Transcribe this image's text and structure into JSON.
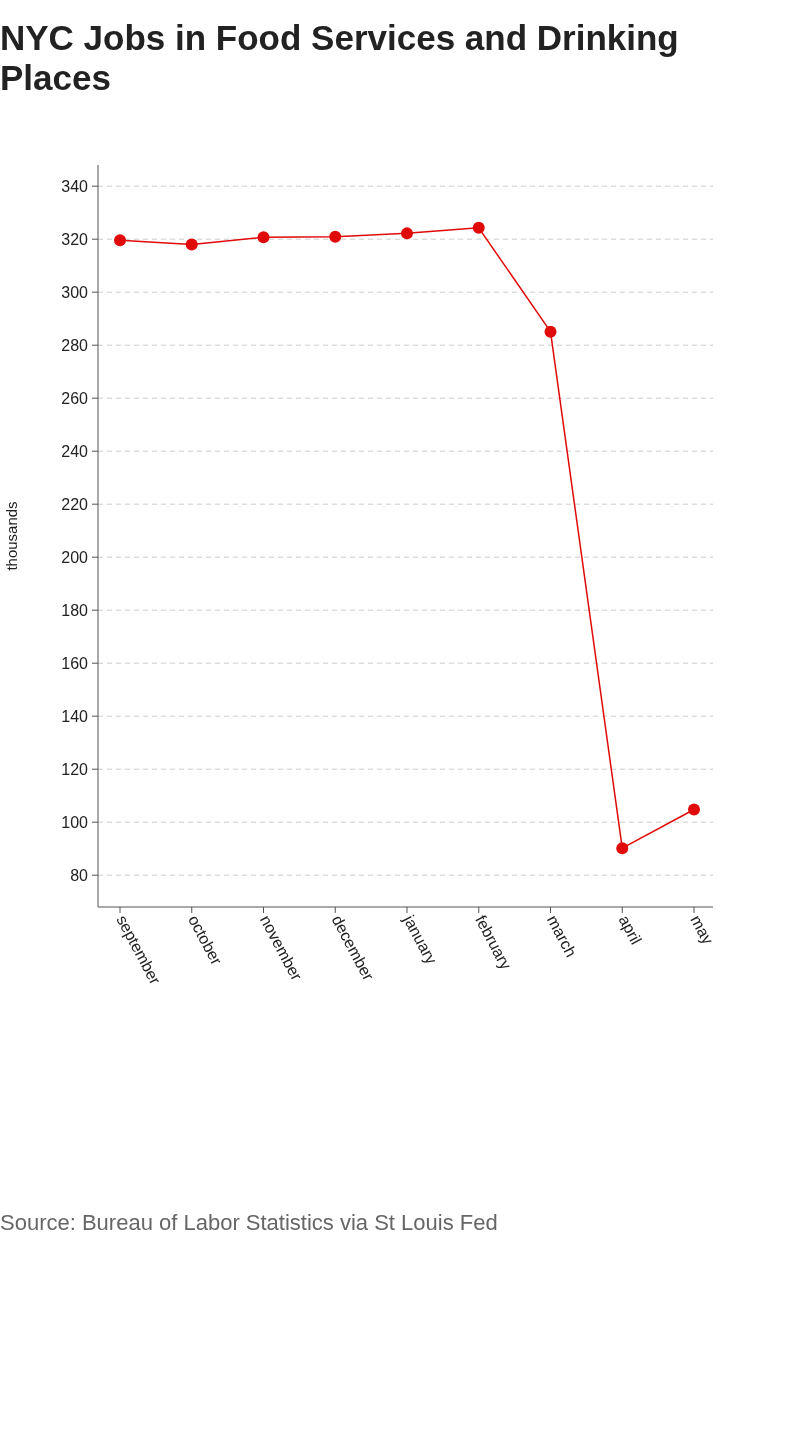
{
  "chart_data": {
    "type": "line",
    "title": "NYC Jobs in Food Services and Drinking Places",
    "ylabel": "thousands",
    "categories": [
      "september",
      "october",
      "november",
      "december",
      "january",
      "february",
      "march",
      "april",
      "may"
    ],
    "series": [
      {
        "color": "#e00a0a",
        "values": [
          319.6,
          318.0,
          320.7,
          320.9,
          322.2,
          324.3,
          285.1,
          90.2,
          104.8
        ]
      }
    ],
    "ylim": [
      68,
      348
    ],
    "yticks": [
      80,
      100,
      120,
      140,
      160,
      180,
      200,
      220,
      240,
      260,
      280,
      300,
      320,
      340
    ],
    "grid": "y",
    "marker": "circle",
    "annotations": [
      "Source: Bureau of Labor Statistics via St Louis Fed"
    ]
  }
}
